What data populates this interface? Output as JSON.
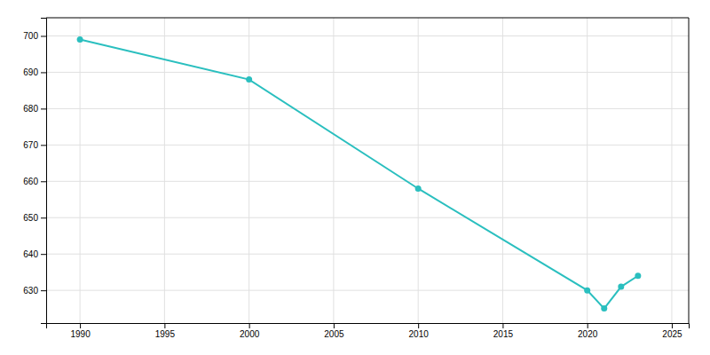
{
  "chart_data": {
    "type": "line",
    "x": [
      1990,
      2000,
      2010,
      2020,
      2021,
      2022,
      2023
    ],
    "values": [
      699,
      688,
      658,
      630,
      625,
      631,
      634
    ],
    "color": "#2abfbf",
    "marker": "circle",
    "xlim": [
      1988,
      2026
    ],
    "ylim": [
      621,
      705
    ],
    "xticks": [
      1990,
      1995,
      2000,
      2005,
      2010,
      2015,
      2020,
      2025
    ],
    "yticks": [
      630,
      640,
      650,
      660,
      670,
      680,
      690,
      700
    ],
    "grid": true
  }
}
